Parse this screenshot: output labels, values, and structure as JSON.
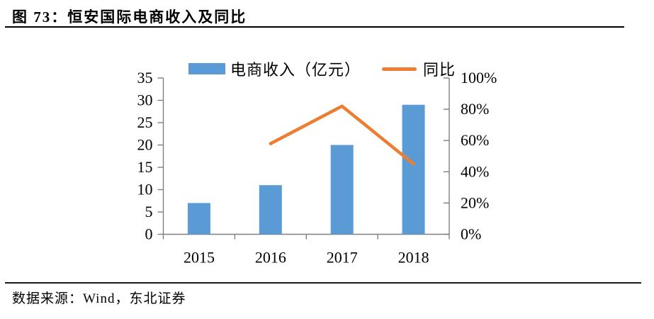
{
  "header": {
    "title": "图 73：恒安国际电商收入及同比"
  },
  "legend": {
    "bar_label": "电商收入（亿元）",
    "line_label": "同比"
  },
  "footer": {
    "source": "数据来源：Wind，东北证券"
  },
  "colors": {
    "bar": "#5B9BD5",
    "line": "#ED7D31",
    "axis": "#7f7f7f",
    "text": "#000000",
    "rule": "#000000"
  },
  "chart_data": {
    "type": "combo",
    "categories": [
      "2015",
      "2016",
      "2017",
      "2018"
    ],
    "series": [
      {
        "name": "电商收入（亿元）",
        "type": "bar",
        "axis": "left",
        "color": "#5B9BD5",
        "values": [
          7,
          11,
          20,
          29
        ]
      },
      {
        "name": "同比",
        "type": "line",
        "axis": "right",
        "color": "#ED7D31",
        "values": [
          null,
          58,
          82,
          45
        ],
        "unit": "%"
      }
    ],
    "left_axis": {
      "min": 0,
      "max": 35,
      "step": 5,
      "tick_labels": [
        "0",
        "5",
        "10",
        "15",
        "20",
        "25",
        "30",
        "35"
      ]
    },
    "right_axis": {
      "min": 0,
      "max": 100,
      "step": 20,
      "tick_labels": [
        "0%",
        "20%",
        "40%",
        "60%",
        "80%",
        "100%"
      ]
    },
    "grid": false,
    "legend_position": "top"
  }
}
